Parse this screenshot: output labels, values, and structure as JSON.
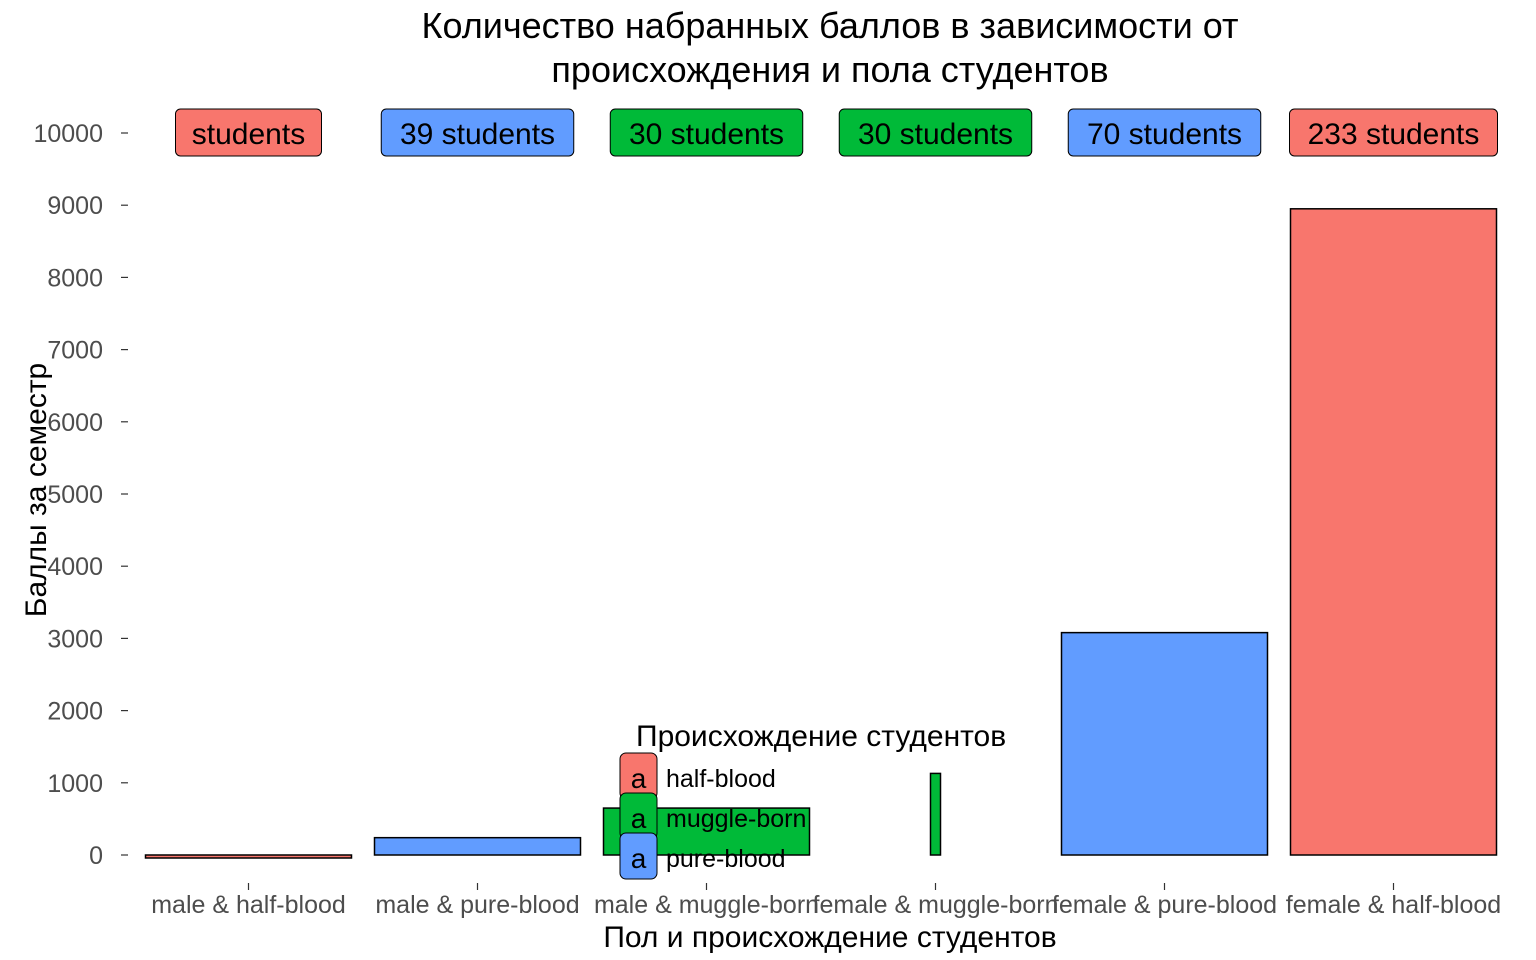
{
  "chart_data": {
    "type": "bar",
    "title_lines": [
      "Количество набранных баллов в зависимости от",
      "происхождения и пола студентов"
    ],
    "xlabel": "Пол и происхождение студентов",
    "ylabel": "Баллы за семестр",
    "ylim": [
      -300,
      10000
    ],
    "yticks": [
      0,
      1000,
      2000,
      3000,
      4000,
      5000,
      6000,
      7000,
      8000,
      9000,
      10000
    ],
    "grid": false,
    "categories": [
      "male & half-blood",
      "male & pure-blood",
      "male & muggle-born",
      "female & muggle-born",
      "female & pure-blood",
      "female & half-blood"
    ],
    "values": [
      -20,
      240,
      650,
      1130,
      3080,
      8950
    ],
    "blood": [
      "half-blood",
      "pure-blood",
      "muggle-born",
      "muggle-born",
      "pure-blood",
      "half-blood"
    ],
    "student_labels": [
      "students",
      "39 students",
      "30 students",
      "30 students",
      "70 students",
      "233 students"
    ],
    "legend": {
      "title": "Происхождение студентов",
      "placement": "inside-bottom-center",
      "key_glyph": "a",
      "items": [
        {
          "name": "half-blood",
          "color": "#F8766D"
        },
        {
          "name": "muggle-born",
          "color": "#00BA38"
        },
        {
          "name": "pure-blood",
          "color": "#619CFF"
        }
      ]
    }
  }
}
